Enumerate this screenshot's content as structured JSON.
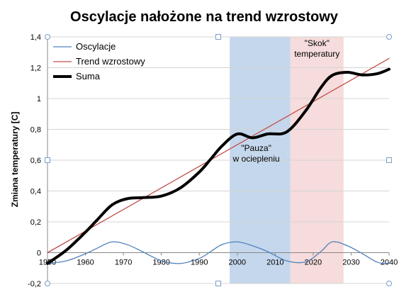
{
  "chart_data": {
    "type": "line",
    "title": "Oscylacje nałożone na trend wzrostowy",
    "ylabel": "Zmiana temperatury [C]",
    "xlabel": "",
    "xlim": [
      1950,
      2040
    ],
    "ylim": [
      -0.2,
      1.4
    ],
    "x_ticks": [
      "1950",
      "1960",
      "1970",
      "1980",
      "1990",
      "2000",
      "2010",
      "2020",
      "2030",
      "2040"
    ],
    "x_tick_values": [
      1950,
      1960,
      1970,
      1980,
      1990,
      2000,
      2010,
      2020,
      2030,
      2040
    ],
    "y_ticks": [
      "-0,2",
      "0",
      "0,2",
      "0,4",
      "0,6",
      "0,8",
      "1",
      "1,2",
      "1,4"
    ],
    "y_tick_values": [
      -0.2,
      0,
      0.2,
      0.4,
      0.6,
      0.8,
      1.0,
      1.2,
      1.4
    ],
    "grid": true,
    "legend_position": "top-left",
    "series": [
      {
        "name": "Oscylacje",
        "color": "#4f81bd",
        "width": 1.3,
        "x": [
          1950,
          1955,
          1960,
          1963,
          1967,
          1971,
          1975,
          1980,
          1985,
          1990,
          1993,
          1996,
          2000,
          2004,
          2008,
          2013,
          2018,
          2022,
          2025,
          2029,
          2033,
          2037,
          2040
        ],
        "y": [
          -0.07,
          -0.053,
          -0.007,
          0.028,
          0.07,
          0.052,
          0.007,
          -0.053,
          -0.07,
          -0.037,
          0.007,
          0.053,
          0.07,
          0.045,
          0.007,
          -0.053,
          -0.06,
          0.007,
          0.07,
          0.045,
          -0.007,
          -0.063,
          -0.07
        ]
      },
      {
        "name": "Trend wzrostowy",
        "color": "#c0504d",
        "width": 1.3,
        "x": [
          1950,
          2040
        ],
        "y": [
          0.0,
          1.26
        ]
      },
      {
        "name": "Suma",
        "color": "#000000",
        "width": 4,
        "x": [
          1950,
          1955,
          1960,
          1963,
          1967,
          1971,
          1975,
          1980,
          1985,
          1990,
          1993,
          1996,
          2000,
          2004,
          2008,
          2013,
          2018,
          2022,
          2025,
          2029,
          2033,
          2037,
          2040
        ],
        "y": [
          -0.07,
          0.017,
          0.133,
          0.21,
          0.31,
          0.35,
          0.357,
          0.367,
          0.42,
          0.523,
          0.607,
          0.693,
          0.77,
          0.745,
          0.77,
          0.783,
          0.92,
          1.07,
          1.15,
          1.17,
          1.153,
          1.162,
          1.19
        ]
      }
    ],
    "shaded_regions": [
      {
        "x_start": 1998,
        "x_end": 2014,
        "color": "#c5d7ec",
        "label": [
          "\"Pauza\"",
          "w ociepleniu"
        ],
        "label_x": 2005,
        "label_y": 0.66
      },
      {
        "x_start": 2014,
        "x_end": 2028,
        "color": "#f6dcdc",
        "label": [
          "\"Skok\"",
          "temperatury"
        ],
        "label_x": 2021,
        "label_y": 1.34
      }
    ]
  }
}
